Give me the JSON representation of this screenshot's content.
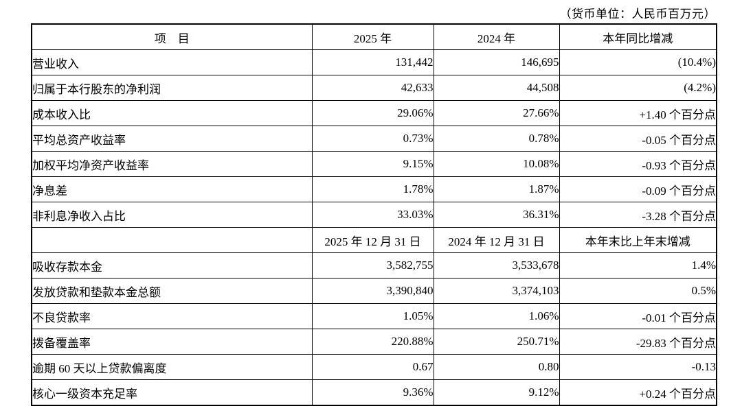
{
  "page": {
    "unit_note": "（货币单位：人民币百万元）"
  },
  "table": {
    "header": {
      "item": "项　目",
      "col_2025": "2025 年",
      "col_2024": "2024 年",
      "change": "本年同比增减"
    },
    "section1_rows": [
      {
        "item": "营业收入",
        "v2025": "131,442",
        "v2024": "146,695",
        "change": "(10.4%)"
      },
      {
        "item": "归属于本行股东的净利润",
        "v2025": "42,633",
        "v2024": "44,508",
        "change": "(4.2%)"
      },
      {
        "item": "成本收入比",
        "v2025": "29.06%",
        "v2024": "27.66%",
        "change": "+1.40 个百分点"
      },
      {
        "item": "平均总资产收益率",
        "v2025": "0.73%",
        "v2024": "0.78%",
        "change": "-0.05 个百分点"
      },
      {
        "item": "加权平均净资产收益率",
        "v2025": "9.15%",
        "v2024": "10.08%",
        "change": "-0.93 个百分点"
      },
      {
        "item": "净息差",
        "v2025": "1.78%",
        "v2024": "1.87%",
        "change": "-0.09 个百分点"
      },
      {
        "item": "非利息净收入占比",
        "v2025": "33.03%",
        "v2024": "36.31%",
        "change": "-3.28 个百分点"
      }
    ],
    "section2_header": {
      "item": "",
      "col_2025": "2025 年 12 月 31 日",
      "col_2024": "2024 年 12 月 31 日",
      "change": "本年末比上年末增减"
    },
    "section2_rows": [
      {
        "item": "吸收存款本金",
        "v2025": "3,582,755",
        "v2024": "3,533,678",
        "change": "1.4%"
      },
      {
        "item": "发放贷款和垫款本金总额",
        "v2025": "3,390,840",
        "v2024": "3,374,103",
        "change": "0.5%"
      },
      {
        "item": "不良贷款率",
        "v2025": "1.05%",
        "v2024": "1.06%",
        "change": "-0.01 个百分点"
      },
      {
        "item": "拨备覆盖率",
        "v2025": "220.88%",
        "v2024": "250.71%",
        "change": "-29.83 个百分点"
      },
      {
        "item": "逾期 60 天以上贷款偏离度",
        "v2025": "0.67",
        "v2024": "0.80",
        "change": "-0.13"
      },
      {
        "item": "核心一级资本充足率",
        "v2025": "9.36%",
        "v2024": "9.12%",
        "change": "+0.24 个百分点"
      }
    ]
  }
}
